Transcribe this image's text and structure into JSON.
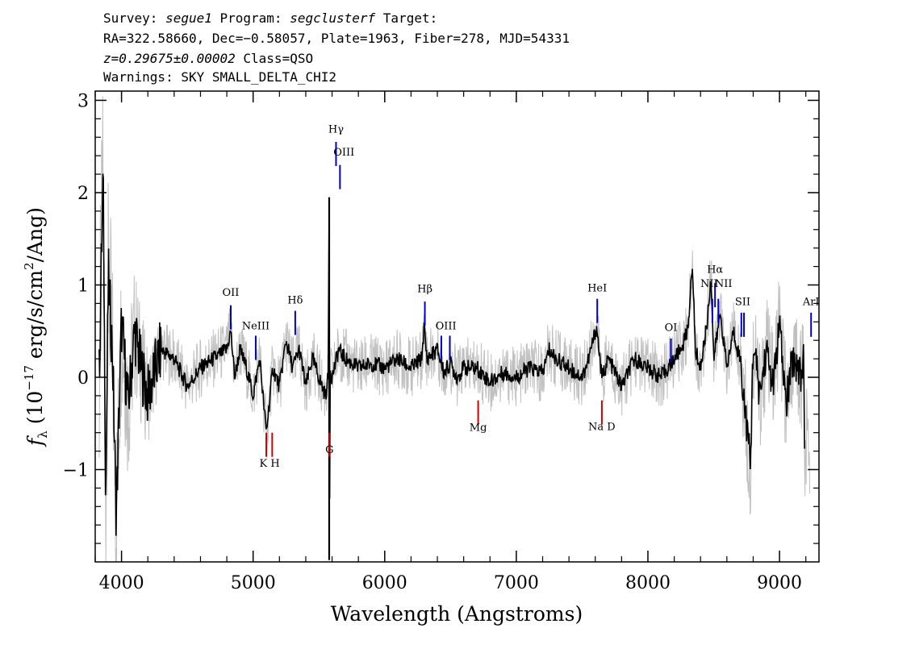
{
  "header": {
    "line1": {
      "survey_label": "Survey: ",
      "survey": "segue1",
      "program_label": " Program: ",
      "program": "segclusterf",
      "target_label": " Target:"
    },
    "line2": "RA=322.58660, Dec=−0.58057, Plate=1963, Fiber=278, MJD=54331",
    "line3": {
      "z": "z=0.29675±0.00002",
      "class": " Class=QSO"
    },
    "line4": "Warnings: SKY SMALL_DELTA_CHI2"
  },
  "chart_data": {
    "type": "line",
    "xlabel": "Wavelength (Angstroms)",
    "ylabel": "f_λ (10^-17 erg/s/cm^2/Ang)",
    "xlim": [
      3800,
      9300
    ],
    "ylim": [
      -2.0,
      3.1
    ],
    "xticks": [
      "4000",
      "5000",
      "6000",
      "7000",
      "8000",
      "9000"
    ],
    "yticks": [
      "−1",
      "0",
      "1",
      "2",
      "3"
    ],
    "grid": false,
    "colors": {
      "flux": "#000000",
      "error": "#c0c0c0",
      "emission": "#0000cc",
      "absorption": "#cc0000"
    },
    "series": [
      {
        "role": "flux",
        "x": [
          3830,
          3860,
          3880,
          3900,
          3930,
          3960,
          4000,
          4050,
          4100,
          4150,
          4200,
          4300,
          4400,
          4500,
          4600,
          4700,
          4800,
          4830,
          4860,
          4900,
          4950,
          5000,
          5050,
          5100,
          5150,
          5200,
          5250,
          5300,
          5350,
          5400,
          5450,
          5500,
          5550,
          5570,
          5578,
          5580,
          5586,
          5600,
          5650,
          5700,
          5800,
          5900,
          6000,
          6100,
          6200,
          6280,
          6300,
          6320,
          6400,
          6450,
          6500,
          6550,
          6600,
          6700,
          6800,
          6900,
          7000,
          7100,
          7200,
          7250,
          7300,
          7400,
          7500,
          7550,
          7610,
          7650,
          7700,
          7800,
          7900,
          8000,
          8100,
          8200,
          8250,
          8300,
          8340,
          8360,
          8400,
          8450,
          8480,
          8500,
          8550,
          8600,
          8650,
          8700,
          8750,
          8780,
          8800,
          8850,
          8900,
          8950,
          9000,
          9050,
          9100,
          9150,
          9170,
          9180,
          9190
        ],
        "y": [
          0.0,
          2.2,
          -1.3,
          1.1,
          0.3,
          -1.5,
          0.6,
          -0.3,
          0.5,
          0.1,
          -0.2,
          0.3,
          0.2,
          -0.1,
          0.1,
          0.2,
          0.3,
          0.5,
          0.0,
          0.3,
          0.1,
          -0.2,
          0.2,
          -0.6,
          0.1,
          -0.1,
          0.4,
          0.1,
          0.3,
          -0.1,
          0.2,
          0.0,
          -0.2,
          0.0,
          1.9,
          -1.9,
          0.1,
          0.0,
          0.3,
          0.2,
          0.1,
          0.15,
          0.1,
          0.2,
          0.1,
          0.2,
          0.55,
          0.2,
          0.3,
          0.05,
          0.15,
          0.0,
          0.1,
          0.1,
          -0.05,
          0.05,
          0.0,
          0.1,
          0.05,
          0.3,
          0.2,
          0.1,
          0.0,
          0.2,
          0.55,
          0.0,
          0.2,
          -0.1,
          0.2,
          0.1,
          0.0,
          0.2,
          0.3,
          0.5,
          1.2,
          0.3,
          0.1,
          0.6,
          1.1,
          0.2,
          0.7,
          0.1,
          0.5,
          0.2,
          -0.5,
          -0.95,
          0.4,
          -0.2,
          0.3,
          -0.1,
          0.55,
          -0.3,
          0.2,
          0.1,
          0.0,
          0.4,
          -0.7
        ]
      }
    ],
    "lines": [
      {
        "name": "Hγ",
        "x": 5630,
        "y": 2.55,
        "kind": "emission"
      },
      {
        "name": "OIII",
        "x": 5660,
        "y": 2.3,
        "kind": "emission"
      },
      {
        "name": "OII",
        "x": 4830,
        "y": 0.78,
        "kind": "emission"
      },
      {
        "name": "NeIII",
        "x": 5020,
        "y": 0.45,
        "kind": "emission"
      },
      {
        "name": "Hδ",
        "x": 5320,
        "y": 0.72,
        "kind": "emission"
      },
      {
        "name": "Hβ",
        "x": 6305,
        "y": 0.82,
        "kind": "emission"
      },
      {
        "name": "OIII",
        "x": 6430,
        "y": 0.45,
        "kind": "emission"
      },
      {
        "name": "OIII",
        "x": 6495,
        "y": 0.45,
        "kind": "emission"
      },
      {
        "name": "HeI",
        "x": 7615,
        "y": 0.85,
        "kind": "emission"
      },
      {
        "name": "OI",
        "x": 8175,
        "y": 0.42,
        "kind": "emission"
      },
      {
        "name": "NII",
        "x": 8490,
        "y": 0.85,
        "kind": "emission"
      },
      {
        "name": "Hα",
        "x": 8510,
        "y": 1.02,
        "kind": "emission"
      },
      {
        "name": "NII",
        "x": 8535,
        "y": 0.85,
        "kind": "emission"
      },
      {
        "name": "SII",
        "x": 8710,
        "y": 0.7,
        "kind": "emission"
      },
      {
        "name": "SII",
        "x": 8730,
        "y": 0.7,
        "kind": "emission"
      },
      {
        "name": "ArIII",
        "x": 9240,
        "y": 0.7,
        "kind": "emission"
      },
      {
        "name": "K",
        "x": 5100,
        "y": -0.6,
        "kind": "absorption"
      },
      {
        "name": "H",
        "x": 5145,
        "y": -0.6,
        "kind": "absorption"
      },
      {
        "name": "G",
        "x": 5580,
        "y": -0.6,
        "kind": "absorption"
      },
      {
        "name": "Mg",
        "x": 6710,
        "y": -0.25,
        "kind": "absorption"
      },
      {
        "name": "Na D",
        "x": 7650,
        "y": -0.25,
        "kind": "absorption"
      }
    ],
    "line_labels": {
      "Hγ": "Hγ",
      "OIII_top": "OIII",
      "OII": "OII",
      "NeIII": "NeIII",
      "Hδ": "Hδ",
      "Hβ": "Hβ",
      "OIII_mid": "OIII",
      "HeI": "HeI",
      "OI": "OI",
      "NII_left": "NII",
      "Hα": "Hα",
      "NII_right": "NII",
      "SII": "SII",
      "ArIII": "ArI",
      "KH": "K H",
      "G": "G",
      "Mg": "Mg",
      "NaD": "Na D"
    }
  }
}
